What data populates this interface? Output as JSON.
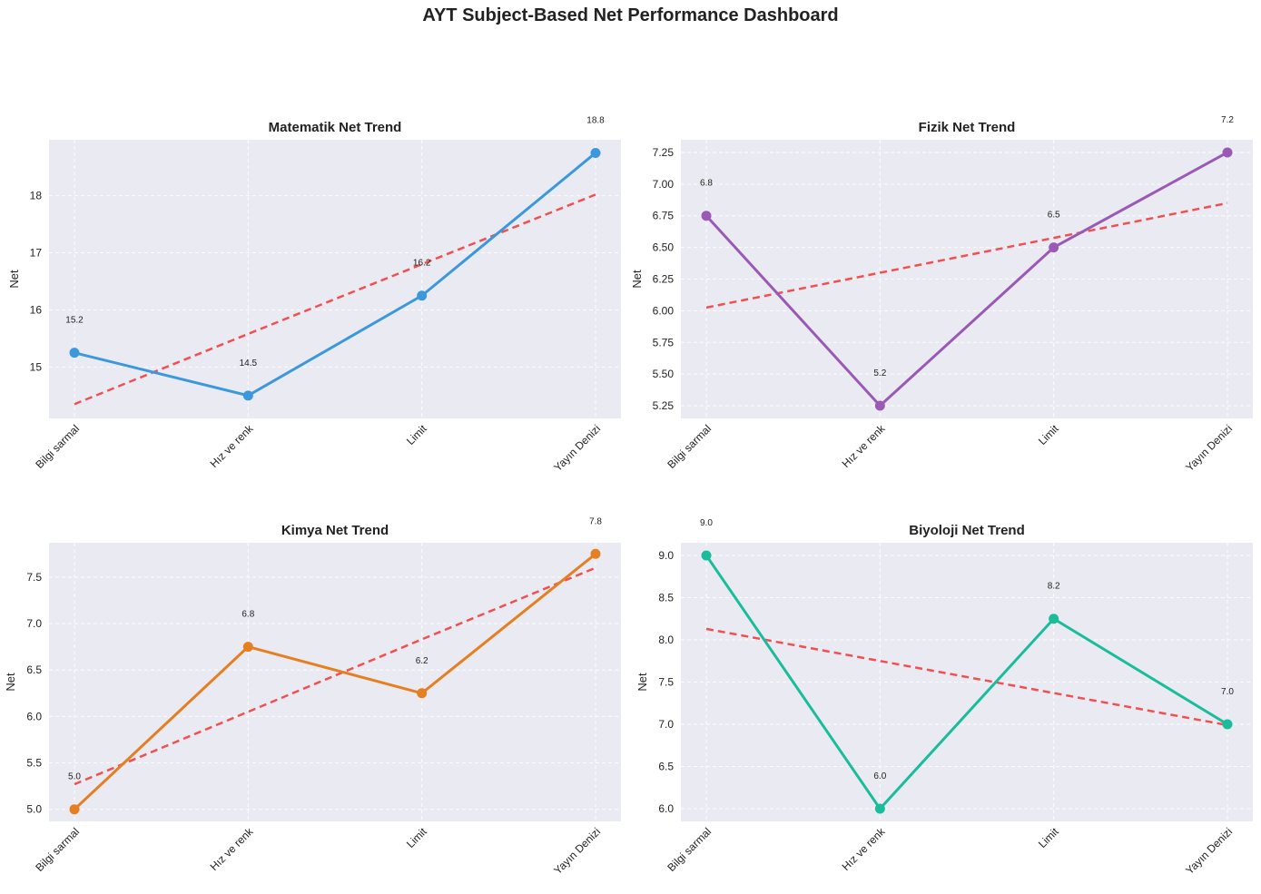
{
  "suptitle": "AYT Subject-Based Net Performance Dashboard",
  "chart_data": [
    {
      "type": "line",
      "title": "Matematik Net Trend",
      "ylabel": "Net",
      "categories": [
        "Bilgi sarmal",
        "Hız ve renk",
        "Limit",
        "Yayın Denizi"
      ],
      "values": [
        15.25,
        14.5,
        16.25,
        18.75
      ],
      "data_labels": [
        "15.2",
        "14.5",
        "16.2",
        "18.8"
      ],
      "trend": [
        14.35,
        15.58,
        16.8,
        18.02
      ],
      "ylim": [
        14.1,
        18.98
      ],
      "yticks": [
        15,
        16,
        17,
        18
      ],
      "ytick_labels": [
        "15",
        "16",
        "17",
        "18"
      ],
      "color": "#3b98dc",
      "trend_color": "#f04848",
      "grid": true
    },
    {
      "type": "line",
      "title": "Fizik Net Trend",
      "ylabel": "Net",
      "categories": [
        "Bilgi sarmal",
        "Hız ve renk",
        "Limit",
        "Yayın Denizi"
      ],
      "values": [
        6.75,
        5.25,
        6.5,
        7.25
      ],
      "data_labels": [
        "6.8",
        "5.2",
        "6.5",
        "7.2"
      ],
      "trend": [
        6.025,
        6.3,
        6.575,
        6.85
      ],
      "ylim": [
        5.15,
        7.35
      ],
      "yticks": [
        5.25,
        5.5,
        5.75,
        6.0,
        6.25,
        6.5,
        6.75,
        7.0,
        7.25
      ],
      "ytick_labels": [
        "5.25",
        "5.50",
        "5.75",
        "6.00",
        "6.25",
        "6.50",
        "6.75",
        "7.00",
        "7.25"
      ],
      "color": "#9b59b6",
      "trend_color": "#f04848",
      "grid": true
    },
    {
      "type": "line",
      "title": "Kimya Net Trend",
      "ylabel": "Net",
      "categories": [
        "Bilgi sarmal",
        "Hız ve renk",
        "Limit",
        "Yayın Denizi"
      ],
      "values": [
        5.0,
        6.75,
        6.25,
        7.75
      ],
      "data_labels": [
        "5.0",
        "6.8",
        "6.2",
        "7.8"
      ],
      "trend": [
        5.27,
        6.05,
        6.83,
        7.6
      ],
      "ylim": [
        4.87,
        7.87
      ],
      "yticks": [
        5.0,
        5.5,
        6.0,
        6.5,
        7.0,
        7.5
      ],
      "ytick_labels": [
        "5.0",
        "5.5",
        "6.0",
        "6.5",
        "7.0",
        "7.5"
      ],
      "color": "#e67e22",
      "trend_color": "#f04848",
      "grid": true
    },
    {
      "type": "line",
      "title": "Biyoloji Net Trend",
      "ylabel": "Net",
      "categories": [
        "Bilgi sarmal",
        "Hız ve renk",
        "Limit",
        "Yayın Denizi"
      ],
      "values": [
        9.0,
        6.0,
        8.25,
        7.0
      ],
      "data_labels": [
        "9.0",
        "6.0",
        "8.2",
        "7.0"
      ],
      "trend": [
        8.13,
        7.75,
        7.37,
        6.99
      ],
      "ylim": [
        5.85,
        9.15
      ],
      "yticks": [
        6.0,
        6.5,
        7.0,
        7.5,
        8.0,
        8.5,
        9.0
      ],
      "ytick_labels": [
        "6.0",
        "6.5",
        "7.0",
        "7.5",
        "8.0",
        "8.5",
        "9.0"
      ],
      "color": "#1abc9c",
      "trend_color": "#f04848",
      "grid": true
    }
  ]
}
